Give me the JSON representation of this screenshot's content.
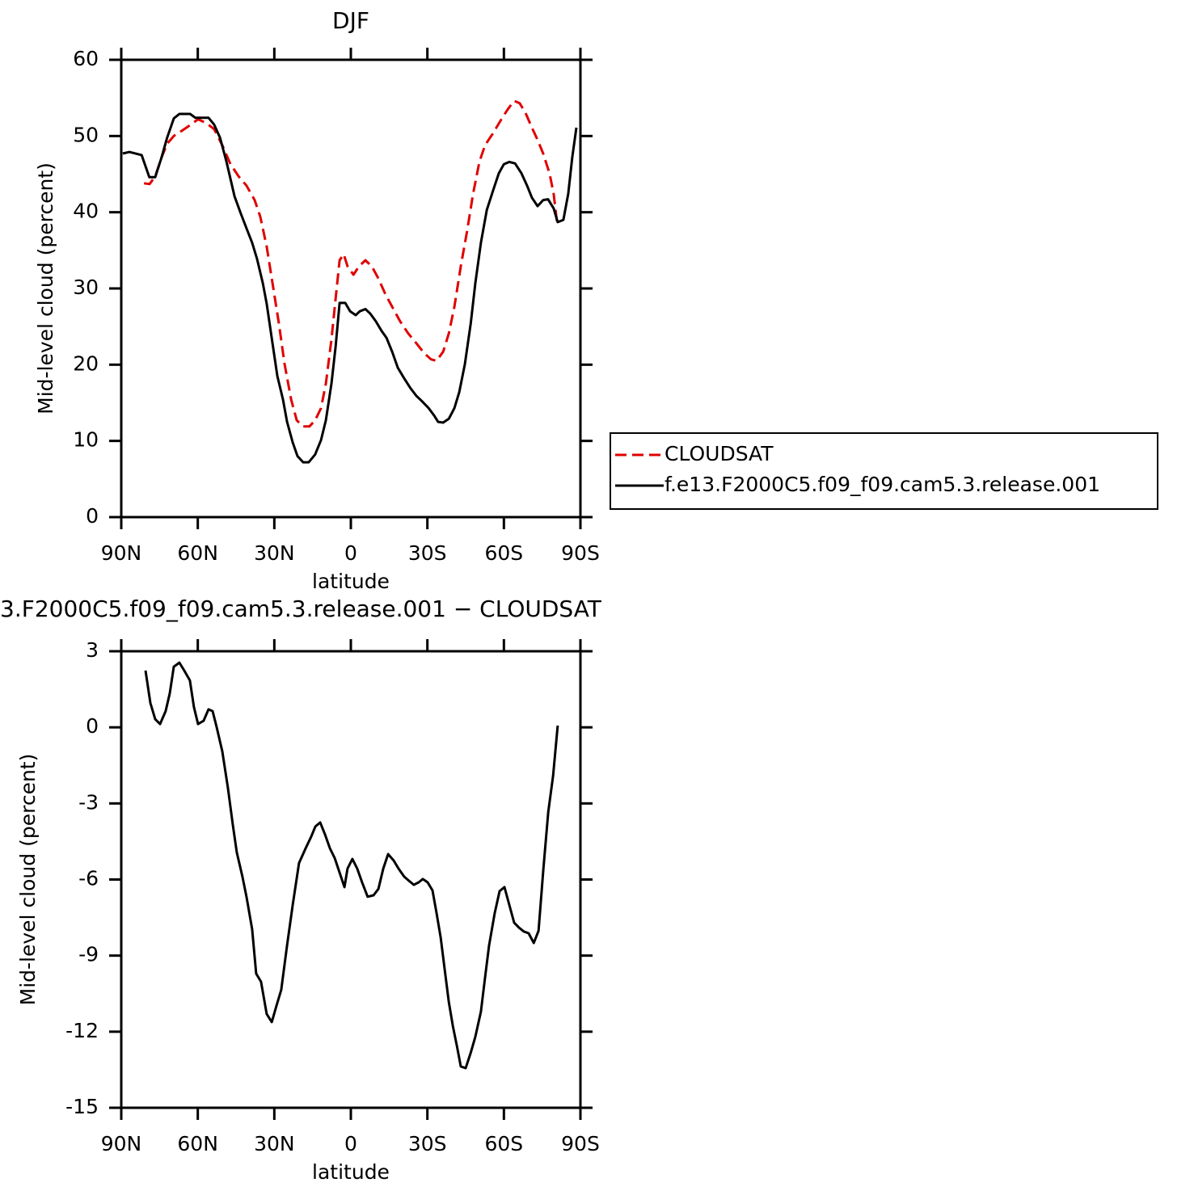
{
  "chart_data": [
    {
      "type": "line",
      "title": "DJF",
      "xlabel": "latitude",
      "ylabel": "Mid-level cloud (percent)",
      "xlim": [
        90,
        -90
      ],
      "xticks": [
        {
          "value": 90,
          "label": "90N"
        },
        {
          "value": 60,
          "label": "60N"
        },
        {
          "value": 30,
          "label": "30N"
        },
        0,
        {
          "value": -30,
          "label": "30S"
        },
        {
          "value": -60,
          "label": "60S"
        },
        {
          "value": -90,
          "label": "90S"
        }
      ],
      "ylim": [
        0,
        60
      ],
      "yticks": [
        0,
        10,
        20,
        30,
        40,
        50,
        60
      ],
      "legend": "right",
      "series": [
        {
          "name": "CLOUDSAT",
          "color": "#e00000",
          "dash": "dashed",
          "x": [
            81.1,
            78.9,
            76.7,
            74.2,
            72,
            69.4,
            66.2,
            63.1,
            59.9,
            56.7,
            53.6,
            50.4,
            47.2,
            44.0,
            40.9,
            37.7,
            35.5,
            33,
            30.7,
            28.2,
            26,
            23.4,
            21.2,
            18.7,
            16.2,
            14,
            11.7,
            9.8,
            7.6,
            6,
            4.4,
            2.8,
            1.3,
            -1,
            -3.2,
            -5.7,
            -8.2,
            -10.8,
            -13.6,
            -16.2,
            -19.3,
            -22.5,
            -25.7,
            -28.8,
            -31.4,
            -33.6,
            -36.2,
            -38.4,
            -40.6,
            -43.1,
            -45.6,
            -47.9,
            -50.4,
            -52.6,
            -55.8,
            -59,
            -61.5,
            -64,
            -66.2,
            -68.5,
            -71,
            -73.2,
            -75.4,
            -77.9,
            -79.5,
            -80.8
          ],
          "values": [
            43.8,
            43.7,
            44.7,
            47.2,
            49.0,
            50.0,
            50.7,
            51.4,
            52.2,
            51.7,
            50.9,
            48.8,
            46.3,
            44.7,
            43.5,
            41.6,
            39.4,
            35.5,
            30.7,
            25.4,
            20.1,
            15.4,
            12.7,
            11.9,
            11.9,
            12.7,
            14.3,
            17.5,
            23.3,
            28.6,
            33.7,
            34.5,
            32.9,
            31.8,
            32.9,
            33.7,
            32.9,
            31.3,
            29.2,
            27.6,
            25.7,
            24.1,
            22.8,
            21.5,
            20.7,
            20.5,
            21.7,
            24.1,
            27.6,
            32.9,
            37.6,
            42.4,
            46.6,
            48.8,
            50.4,
            52.2,
            53.5,
            54.6,
            54.3,
            53.0,
            51.1,
            49.5,
            47.7,
            45.1,
            42.4,
            38.7
          ]
        },
        {
          "name": "f.e13.F2000C5.f09_f09.cam5.3.release.001",
          "color": "#000000",
          "dash": "solid",
          "x": [
            89.4,
            86.8,
            82,
            79,
            76.7,
            74.2,
            72,
            69.4,
            67.2,
            63,
            61,
            55.8,
            53.6,
            51.3,
            48.8,
            45.6,
            43.1,
            40.9,
            38.7,
            36.8,
            34.5,
            33,
            30.7,
            28.8,
            26.6,
            25,
            22.8,
            20.9,
            18.7,
            16.5,
            14,
            11.7,
            9.8,
            7.6,
            6,
            4.4,
            2.2,
            0.3,
            -1.9,
            -3.5,
            -5.7,
            -7.6,
            -9.8,
            -12.1,
            -14,
            -16.2,
            -18.4,
            -20.9,
            -23.2,
            -25.7,
            -27.9,
            -30.5,
            -32.7,
            -34.2,
            -36.2,
            -38.4,
            -40.6,
            -42.5,
            -44.7,
            -47,
            -48.8,
            -51,
            -53.3,
            -55.8,
            -58,
            -60,
            -62.1,
            -64.4,
            -66.9,
            -69.1,
            -71,
            -73.2,
            -75.4,
            -77.3,
            -79.5,
            -81.1,
            -83.3,
            -85.2,
            -86.8,
            -88.4
          ],
          "values": [
            47.7,
            47.9,
            47.5,
            44.6,
            44.6,
            47.2,
            49.8,
            52.3,
            52.9,
            52.9,
            52.4,
            52.4,
            51.5,
            49.8,
            46.7,
            42.1,
            39.8,
            37.9,
            36.0,
            33.9,
            30.7,
            28,
            22.8,
            18.5,
            15.4,
            12.5,
            9.8,
            8.0,
            7.2,
            7.2,
            8.2,
            10.1,
            12.7,
            17.5,
            22.3,
            28.1,
            28.1,
            27.0,
            26.5,
            27.0,
            27.3,
            26.7,
            25.7,
            24.4,
            23.5,
            21.7,
            19.6,
            18.2,
            17.0,
            15.9,
            15.2,
            14.3,
            13.3,
            12.5,
            12.4,
            12.9,
            14.3,
            16.4,
            20.1,
            25.4,
            30.7,
            36,
            40.3,
            42.9,
            45.1,
            46.3,
            46.6,
            46.4,
            45.1,
            43.5,
            41.9,
            40.8,
            41.6,
            41.7,
            40.5,
            38.7,
            39.0,
            42.4,
            47.2,
            51.1
          ]
        }
      ]
    },
    {
      "type": "line",
      "title": "3.F2000C5.f09_f09.cam5.3.release.001 − CLOUDSAT",
      "xlabel": "latitude",
      "ylabel": "Mid-level cloud (percent)",
      "xlim": [
        90,
        -90
      ],
      "xticks": [
        {
          "value": 90,
          "label": "90N"
        },
        {
          "value": 60,
          "label": "60N"
        },
        {
          "value": 30,
          "label": "30N"
        },
        0,
        {
          "value": -30,
          "label": "30S"
        },
        {
          "value": -60,
          "label": "60S"
        },
        {
          "value": -90,
          "label": "90S"
        }
      ],
      "ylim": [
        -15,
        3
      ],
      "yticks": [
        -15,
        -12,
        -9,
        -6,
        -3,
        0,
        3
      ],
      "series": [
        {
          "color": "#000000",
          "dash": "solid",
          "x": [
            80.5,
            78.6,
            76.7,
            74.8,
            72.6,
            71,
            69.4,
            67.2,
            65.3,
            63.1,
            61.5,
            59.9,
            57.7,
            55.8,
            54.2,
            52.6,
            50.4,
            48.2,
            46.3,
            44.7,
            42.5,
            40.9,
            38.7,
            37.1,
            35.2,
            33,
            31,
            29.2,
            27.3,
            25,
            22.8,
            20.3,
            17.7,
            15.5,
            13.9,
            12,
            10.1,
            8.2,
            6.3,
            4.4,
            2.5,
            1.3,
            -0.6,
            -2.5,
            -4.4,
            -6.6,
            -8.9,
            -10.8,
            -12.7,
            -14.6,
            -16.8,
            -18.7,
            -20.9,
            -22.8,
            -24.7,
            -26.6,
            -28.2,
            -30.1,
            -32,
            -33.6,
            -35.2,
            -36.8,
            -38.4,
            -40,
            -41.6,
            -43.1,
            -45,
            -47,
            -48.8,
            -51,
            -52.6,
            -54.2,
            -56.4,
            -58.3,
            -60.2,
            -62.1,
            -64,
            -65.9,
            -67.8,
            -69.7,
            -71.7,
            -73.6,
            -75.5,
            -77.4,
            -79.3,
            -81.1
          ],
          "values": [
            2.24,
            0.96,
            0.32,
            0.13,
            0.64,
            1.34,
            2.39,
            2.55,
            2.24,
            1.85,
            0.8,
            0.13,
            0.26,
            0.71,
            0.64,
            0.01,
            -0.95,
            -2.38,
            -3.82,
            -4.93,
            -5.89,
            -6.68,
            -7.96,
            -9.71,
            -10.03,
            -11.3,
            -11.62,
            -10.99,
            -10.35,
            -8.6,
            -7.0,
            -5.35,
            -4.77,
            -4.3,
            -3.91,
            -3.75,
            -4.23,
            -4.77,
            -5.16,
            -5.73,
            -6.3,
            -5.57,
            -5.19,
            -5.57,
            -6.11,
            -6.68,
            -6.62,
            -6.37,
            -5.57,
            -5.0,
            -5.25,
            -5.57,
            -5.89,
            -6.05,
            -6.21,
            -6.11,
            -5.98,
            -6.11,
            -6.43,
            -7.32,
            -8.28,
            -9.55,
            -10.83,
            -11.78,
            -12.58,
            -13.37,
            -13.44,
            -12.83,
            -12.2,
            -11.21,
            -9.87,
            -8.6,
            -7.32,
            -6.46,
            -6.3,
            -7.0,
            -7.7,
            -7.9,
            -8.05,
            -8.12,
            -8.5,
            -8.02,
            -5.57,
            -3.34,
            -1.91,
            0.07
          ]
        }
      ]
    }
  ]
}
